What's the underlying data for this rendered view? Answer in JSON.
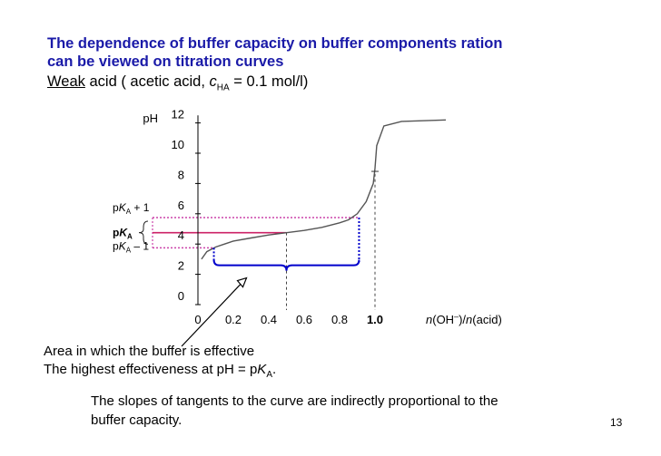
{
  "slide": {
    "title_line1": "The dependence of buffer capacity on buffer components ration",
    "title_line2": "can be viewed on titration curves",
    "subtitle_weak": "Weak",
    "subtitle_rest": " acid  ( acetic acid, ",
    "subtitle_c": "c",
    "subtitle_sub": "HA",
    "subtitle_end": " = 0.1 mol/l)",
    "note_line1": "Area in which the buffer is effective",
    "note_line2_prefix": "The highest effectiveness at pH = p",
    "note_line2_k": "K",
    "note_line2_sub": "A",
    "note_line2_suffix": ".",
    "footer_line1": "The slopes of tangents to the curve are indirectly proportional to the",
    "footer_line2": "buffer capacity.",
    "page_number": "13"
  },
  "colors": {
    "title": "#1a1aa8",
    "pka_line": "#cc2266",
    "pka_bound": "#cc44aa",
    "range_marks": "#0000cc",
    "curve": "#555555",
    "axis": "#000000"
  },
  "chart_data": {
    "type": "line",
    "ylabel": "pH",
    "xlabel_n1": "n",
    "xlabel_ion": "(OH",
    "xlabel_sup": "–",
    "xlabel_mid": ")/",
    "xlabel_n2": "n",
    "xlabel_end": "(acid)",
    "ylim": [
      0,
      12.5
    ],
    "xlim": [
      0,
      1.4
    ],
    "y_ticks": [
      "0",
      "2",
      "4",
      "6",
      "8",
      "10",
      "12"
    ],
    "x_ticks": [
      "0",
      "0.2",
      "0.4",
      "0.6",
      "0.8",
      "1.0"
    ],
    "series": [
      {
        "x": [
          0.02,
          0.05,
          0.1,
          0.15,
          0.2,
          0.3,
          0.4,
          0.5,
          0.6,
          0.7,
          0.8,
          0.85,
          0.9,
          0.95,
          0.99,
          1.0,
          1.01,
          1.05,
          1.15,
          1.4
        ],
        "y": [
          3.0,
          3.5,
          3.8,
          4.0,
          4.2,
          4.4,
          4.6,
          4.75,
          4.9,
          5.1,
          5.4,
          5.6,
          6.0,
          6.8,
          8.0,
          9.0,
          10.5,
          11.8,
          12.1,
          12.2
        ]
      }
    ],
    "pKa": 4.75,
    "pKa_plus_1": 5.75,
    "pKa_minus_1": 3.75,
    "buffer_range_x": [
      0.09,
      0.91
    ],
    "midpoint_x": 0.5,
    "equivalence_x": 1.0,
    "pka_plus_label_prefix": "p",
    "pka_plus_label_k": "K",
    "pka_plus_label_sub": "A",
    "pka_plus_label_suffix": " + 1",
    "pka_label_prefix": "p",
    "pka_label_k": "K",
    "pka_label_sub": "A",
    "pka_minus_label_prefix": "p",
    "pka_minus_label_k": "K",
    "pka_minus_label_sub": "A",
    "pka_minus_label_suffix": " – 1"
  }
}
